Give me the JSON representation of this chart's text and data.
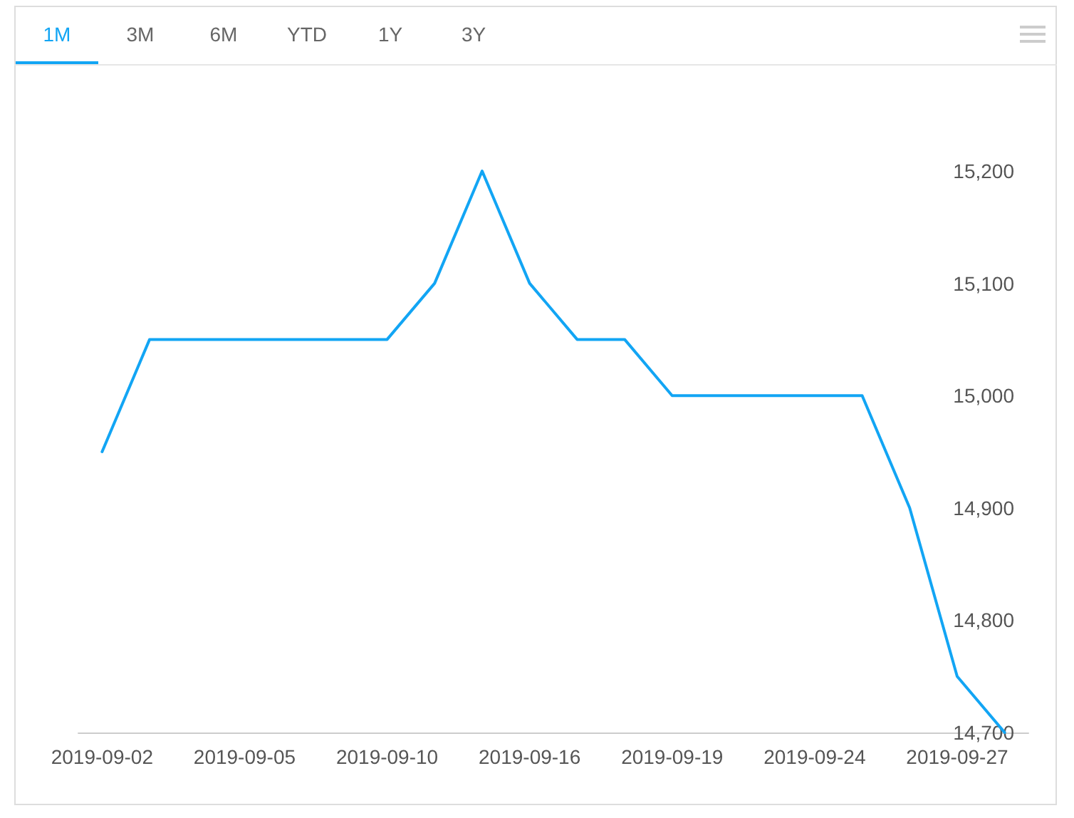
{
  "chart_data": {
    "type": "line",
    "annotations": [
      "1M",
      "3M",
      "6M",
      "YTD",
      "1Y",
      "3Y"
    ],
    "categories": [
      "2019-09-02",
      null,
      null,
      "2019-09-05",
      null,
      null,
      "2019-09-10",
      null,
      null,
      "2019-09-16",
      null,
      null,
      "2019-09-19",
      null,
      null,
      "2019-09-24",
      null,
      null,
      "2019-09-27",
      null
    ],
    "series": [
      {
        "color": "#12a5f4",
        "values": [
          14950,
          15050,
          15050,
          15050,
          15050,
          15050,
          15050,
          15100,
          15200,
          15100,
          15050,
          15050,
          15000,
          15000,
          15000,
          15000,
          15000,
          14900,
          14750,
          14700
        ]
      }
    ],
    "ylim": [
      14700,
      15200
    ],
    "yticks": [
      {
        "value": 14700,
        "label": "14,700"
      },
      {
        "value": 14800,
        "label": "14,800"
      },
      {
        "value": 14900,
        "label": "14,900"
      },
      {
        "value": 15000,
        "label": "15,000"
      },
      {
        "value": 15100,
        "label": "15,100"
      },
      {
        "value": 15200,
        "label": "15,200"
      }
    ],
    "grid": false,
    "marker": "none",
    "line_style": "solid"
  }
}
